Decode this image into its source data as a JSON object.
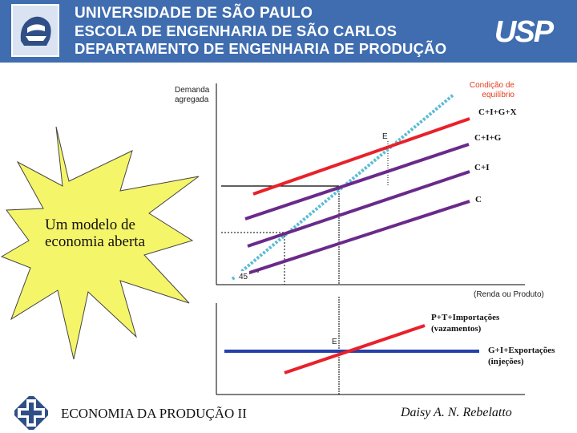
{
  "header": {
    "line1": "UNIVERSIDADE DE SÃO PAULO",
    "line2": "ESCOLA DE ENGENHARIA DE SÃO CARLOS",
    "line3": "DEPARTAMENTO DE ENGENHARIA DE PRODUÇÃO",
    "crest_icon": "usp-crest-icon",
    "logo_text": "USP",
    "color": "#3f6db0"
  },
  "callout": {
    "text_line1": "Um modelo de",
    "text_line2": "economia aberta",
    "color": "#f5f56a"
  },
  "diagram": {
    "y_axis_label_line1": "Demanda",
    "y_axis_label_line2": "agregada",
    "equilibrium_label_line1": "Condição de",
    "equilibrium_label_line2": "equilíbrio",
    "line_labels": [
      "C+I+G+X",
      "C+I+G",
      "C+I",
      "C"
    ],
    "e_label_top": "E",
    "angle_label": "45",
    "degree_symbol": "°",
    "x_axis_label": "(Renda ou Produto)",
    "e_label_bottom": "E",
    "leakage_label_line1": "P+T+Importações",
    "leakage_label_line2": "(vazamentos)",
    "injection_label_line1": "G+I+Exportações",
    "injection_label_line2": "(injeções)",
    "colors": {
      "cixgx": "#e8212a",
      "consumption": "#6a2a8a",
      "forty_five": "#5bbcd6",
      "injections": "#2540a8"
    }
  },
  "footer": {
    "course": "ECONOMIA DA PRODUÇÃO II",
    "author": "Daisy A. N. Rebelatto",
    "logo_icon": "eesc-logo-icon"
  }
}
